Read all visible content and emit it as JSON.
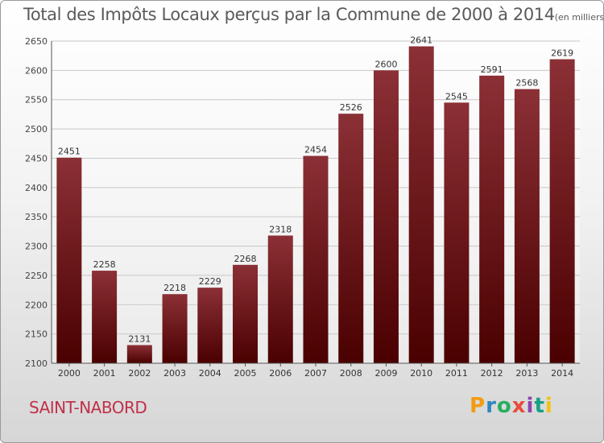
{
  "chart_data": {
    "type": "bar",
    "title": "Total des Impôts Locaux perçus par la Commune de 2000 à 2014",
    "unit": "(en milliers d'€)",
    "categories": [
      "2000",
      "2001",
      "2002",
      "2003",
      "2004",
      "2005",
      "2006",
      "2007",
      "2008",
      "2009",
      "2010",
      "2011",
      "2012",
      "2013",
      "2014"
    ],
    "values": [
      2451,
      2258,
      2131,
      2218,
      2229,
      2268,
      2318,
      2454,
      2526,
      2600,
      2641,
      2545,
      2591,
      2568,
      2619
    ],
    "ylim": [
      2100,
      2650
    ],
    "yticks": [
      2100,
      2150,
      2200,
      2250,
      2300,
      2350,
      2400,
      2450,
      2500,
      2550,
      2600,
      2650
    ],
    "xlabel": "",
    "ylabel": "",
    "grid": true,
    "bar_color_top": "#8b3036",
    "bar_color_bottom": "#4a0000"
  },
  "footer": {
    "commune": "SAINT-NABORD",
    "brand_letters": [
      "P",
      "r",
      "o",
      "x",
      "i",
      "t",
      "i"
    ],
    "brand_colors": [
      "#f39c12",
      "#2e86c1",
      "#27ae60",
      "#e74c3c",
      "#8e44ad",
      "#16a085",
      "#f1c40f"
    ]
  }
}
